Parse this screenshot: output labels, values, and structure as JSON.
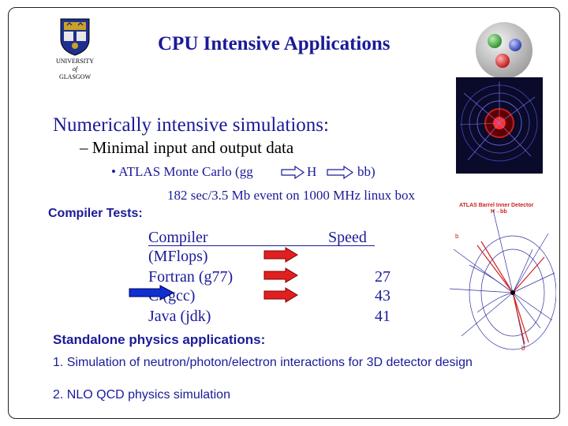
{
  "title": "CPU Intensive Applications",
  "logo": {
    "university_line1": "UNIVERSITY",
    "university_of": "of",
    "university_line3": "GLASGOW"
  },
  "heading": "Numerically intensive simulations:",
  "sub_bullet": "– Minimal input and output data",
  "bullet_parts": {
    "prefix": "• ATLAS Monte Carlo (gg",
    "middle": "H",
    "suffix": "bb)"
  },
  "bullet_line2": "182 sec/3.5 Mb event on 1000 MHz linux box",
  "compiler_tests_label": "Compiler Tests:",
  "table": {
    "header_compiler": "Compiler",
    "header_speed": "Speed",
    "header_units": "(MFlops)",
    "rows": [
      {
        "compiler": "Fortran (g77)",
        "speed": "27"
      },
      {
        "compiler": "C (gcc)",
        "speed": "43"
      },
      {
        "compiler": "Java (jdk)",
        "speed": "41"
      }
    ]
  },
  "atlas_detector_label_line1": "ATLAS Barrel Inner Detector",
  "atlas_detector_label_line2": "H→bb",
  "event_label_b": "b",
  "standalone_heading": "Standalone physics applications:",
  "list": [
    "1. Simulation of neutron/photon/electron interactions for 3D detector design",
    "2. NLO QCD physics simulation"
  ],
  "colors": {
    "text_blue": "#1a1a99",
    "arrow_red": "#e02020",
    "arrow_blue": "#1030d0"
  },
  "icons": {
    "logo": "university-crest-icon",
    "molecule": "molecule-icon",
    "arrow": "right-arrow-icon"
  }
}
